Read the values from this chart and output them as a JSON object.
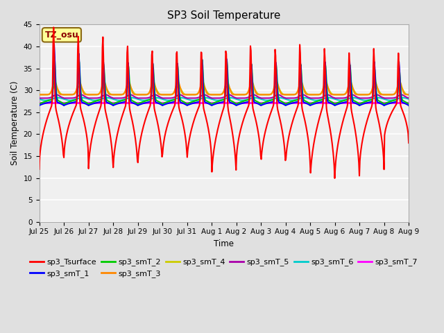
{
  "title": "SP3 Soil Temperature",
  "ylabel": "Soil Temperature (C)",
  "xlabel": "Time",
  "annotation": "TZ_osu",
  "ylim": [
    0,
    45
  ],
  "yticks": [
    0,
    5,
    10,
    15,
    20,
    25,
    30,
    35,
    40,
    45
  ],
  "series_colors": {
    "sp3_Tsurface": "#FF0000",
    "sp3_smT_1": "#0000FF",
    "sp3_smT_2": "#00CC00",
    "sp3_smT_3": "#FF8800",
    "sp3_smT_4": "#CCCC00",
    "sp3_smT_5": "#AA00AA",
    "sp3_smT_6": "#00CCCC",
    "sp3_smT_7": "#FF00FF"
  },
  "background_color": "#E0E0E0",
  "plot_bg_color": "#F0F0F0",
  "grid_color": "#FFFFFF",
  "xtick_labels": [
    "Jul 25",
    "Jul 26",
    "Jul 27",
    "Jul 28",
    "Jul 29",
    "Jul 30",
    "Jul 31",
    "Aug 1",
    "Aug 2",
    "Aug 3",
    "Aug 4",
    "Aug 5",
    "Aug 6",
    "Aug 7",
    "Aug 8",
    "Aug 9"
  ]
}
